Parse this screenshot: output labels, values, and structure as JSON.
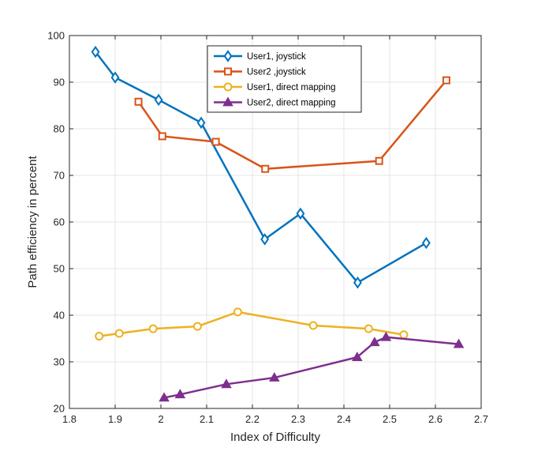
{
  "chart_data": {
    "type": "line",
    "title": "",
    "xlabel": "Index of Difficulty",
    "ylabel": "Path efficiency in percent",
    "xlim": [
      1.8,
      2.7
    ],
    "ylim": [
      20,
      100
    ],
    "xticks": [
      1.8,
      1.9,
      2,
      2.1,
      2.2,
      2.3,
      2.4,
      2.5,
      2.6,
      2.7
    ],
    "xtick_labels": [
      "1.8",
      "1.9",
      "2",
      "2.1",
      "2.2",
      "2.3",
      "2.4",
      "2.5",
      "2.6",
      "2.7"
    ],
    "yticks": [
      20,
      30,
      40,
      50,
      60,
      70,
      80,
      90,
      100
    ],
    "ytick_labels": [
      "20",
      "30",
      "40",
      "50",
      "60",
      "70",
      "80",
      "90",
      "100"
    ],
    "grid": true,
    "legend_position": "top-center",
    "series": [
      {
        "name": "User1, joystick",
        "color": "#0072BD",
        "marker": "diamond",
        "x": [
          1.857,
          1.9,
          1.995,
          2.088,
          2.227,
          2.305,
          2.43,
          2.58
        ],
        "y": [
          96.5,
          91.0,
          86.2,
          81.3,
          56.3,
          61.8,
          47.0,
          55.5
        ]
      },
      {
        "name": "User2 ,joystick",
        "color": "#D95319",
        "marker": "square",
        "x": [
          1.951,
          2.003,
          2.12,
          2.228,
          2.477,
          2.624
        ],
        "y": [
          85.8,
          78.4,
          77.2,
          71.4,
          73.1,
          90.4
        ]
      },
      {
        "name": "User1, direct mapping",
        "color": "#EDB120",
        "marker": "circle",
        "x": [
          1.865,
          1.909,
          1.983,
          2.08,
          2.168,
          2.333,
          2.454,
          2.531
        ],
        "y": [
          35.5,
          36.1,
          37.1,
          37.6,
          40.7,
          37.8,
          37.1,
          35.8
        ]
      },
      {
        "name": "User2, direct mapping",
        "color": "#7E2F8E",
        "marker": "triangle",
        "x": [
          2.007,
          2.042,
          2.143,
          2.248,
          2.429,
          2.467,
          2.492,
          2.651
        ],
        "y": [
          22.3,
          23.0,
          25.2,
          26.6,
          31.0,
          34.2,
          35.3,
          33.8
        ]
      }
    ]
  }
}
